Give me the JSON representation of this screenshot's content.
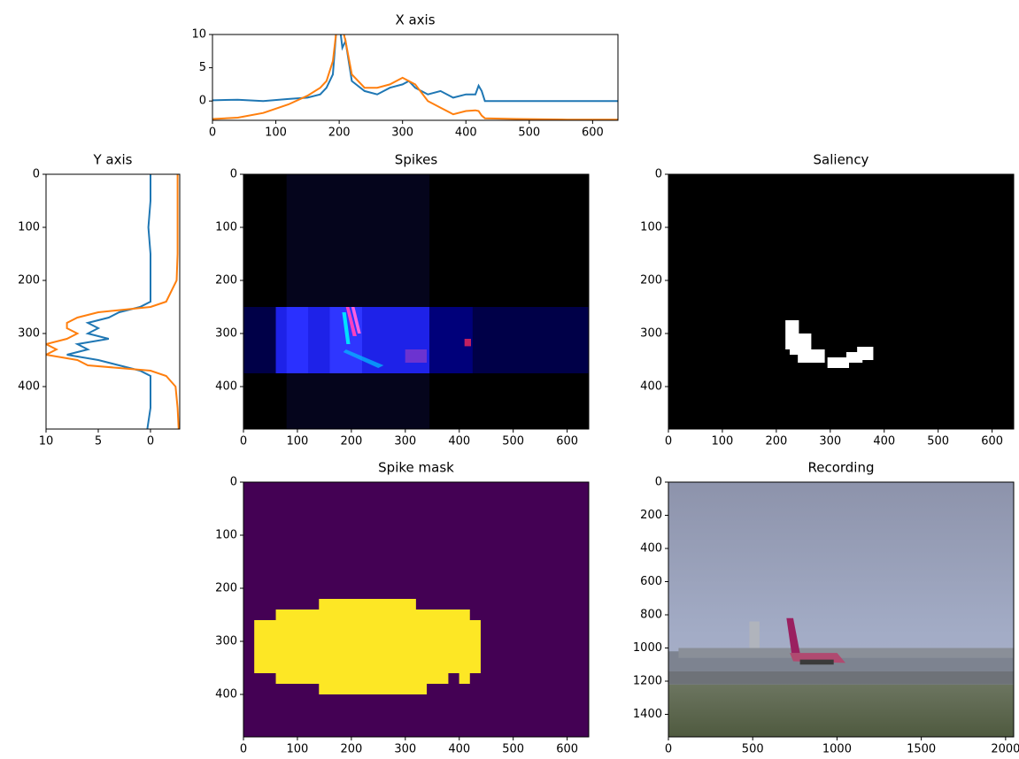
{
  "chart_data": [
    {
      "type": "line",
      "title": "X axis",
      "x": [
        0,
        40,
        80,
        120,
        150,
        170,
        180,
        190,
        195,
        200,
        205,
        210,
        220,
        240,
        260,
        280,
        300,
        310,
        320,
        340,
        360,
        380,
        400,
        415,
        420,
        425,
        430,
        480,
        560,
        640
      ],
      "series": [
        {
          "color": "#1f77b4",
          "values": [
            0.1,
            0.2,
            0,
            0.3,
            0.5,
            1,
            2,
            4,
            10,
            12,
            8,
            9,
            3,
            1.5,
            1,
            2,
            2.5,
            3,
            2,
            1,
            1.5,
            0.5,
            1,
            1,
            2.3,
            1.5,
            0,
            0,
            0,
            0
          ]
        },
        {
          "color": "#ff7f0e",
          "values": [
            -2.7,
            -2.5,
            -1.8,
            -0.5,
            0.8,
            2,
            3,
            6,
            10,
            12,
            11,
            9,
            4,
            2,
            2,
            2.5,
            3.5,
            3,
            2.5,
            0,
            -1,
            -2,
            -1.5,
            -1.4,
            -1.5,
            -2.2,
            -2.6,
            -2.7,
            -2.8,
            -2.8
          ]
        }
      ],
      "xlim": [
        0,
        640
      ],
      "xticks": [
        0,
        100,
        200,
        300,
        400,
        500,
        600
      ],
      "ylim": [
        -2.9,
        10
      ],
      "yticks": [
        0,
        5,
        10
      ]
    },
    {
      "type": "line",
      "orientation": "horizontal",
      "title": "Y axis",
      "y": [
        0,
        50,
        100,
        150,
        200,
        240,
        250,
        260,
        270,
        280,
        290,
        300,
        310,
        320,
        330,
        340,
        350,
        360,
        370,
        380,
        400,
        440,
        480
      ],
      "series": [
        {
          "color": "#1f77b4",
          "values": [
            0,
            0,
            0.2,
            0,
            0,
            0,
            1,
            3,
            4,
            6,
            5,
            6,
            4,
            7,
            6,
            8,
            5,
            3,
            1,
            0,
            0,
            0,
            0.3
          ]
        },
        {
          "color": "#ff7f0e",
          "values": [
            -2.6,
            -2.6,
            -2.6,
            -2.6,
            -2.5,
            -1.5,
            0,
            5,
            7,
            8,
            8,
            7,
            8,
            10,
            9,
            10,
            7,
            6,
            0,
            -1.5,
            -2.4,
            -2.6,
            -2.7
          ]
        }
      ],
      "xlim": [
        10,
        -2.8
      ],
      "xticks": [
        10,
        5,
        0
      ],
      "ylim": [
        480,
        0
      ],
      "yticks": [
        0,
        100,
        200,
        300,
        400
      ]
    },
    {
      "type": "image",
      "title": "Spikes",
      "xlim": [
        0,
        640
      ],
      "xticks": [
        0,
        100,
        200,
        300,
        400,
        500,
        600
      ],
      "ylim": [
        480,
        0
      ],
      "yticks": [
        0,
        100,
        200,
        300,
        400
      ]
    },
    {
      "type": "image",
      "title": "Saliency",
      "xlim": [
        0,
        640
      ],
      "xticks": [
        0,
        100,
        200,
        300,
        400,
        500,
        600
      ],
      "ylim": [
        480,
        0
      ],
      "yticks": [
        0,
        100,
        200,
        300,
        400
      ]
    },
    {
      "type": "image",
      "title": "Spike mask",
      "xlim": [
        0,
        640
      ],
      "xticks": [
        0,
        100,
        200,
        300,
        400,
        500,
        600
      ],
      "ylim": [
        480,
        0
      ],
      "yticks": [
        0,
        100,
        200,
        300,
        400
      ]
    },
    {
      "type": "image",
      "title": "Recording",
      "xlim": [
        0,
        2048
      ],
      "xticks": [
        0,
        500,
        1000,
        1500,
        2000
      ],
      "ylim": [
        1536,
        0
      ],
      "yticks": [
        0,
        200,
        400,
        600,
        800,
        1000,
        1200,
        1400
      ]
    }
  ]
}
